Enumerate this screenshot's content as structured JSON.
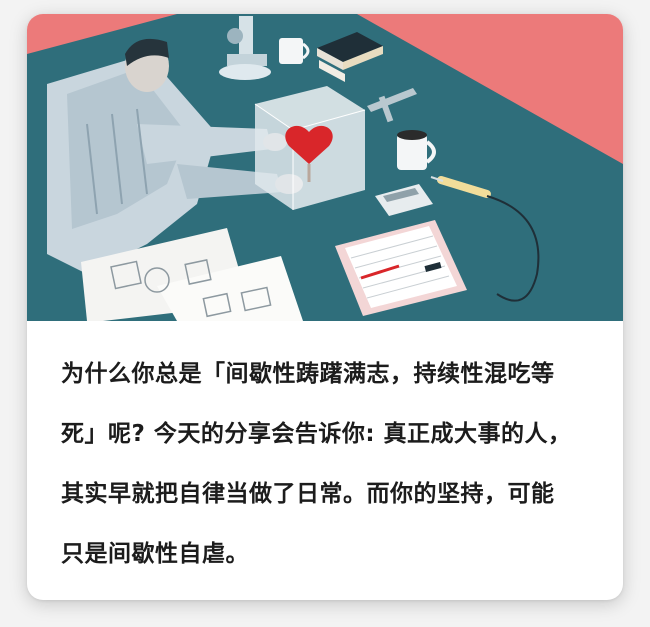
{
  "caption": {
    "lines": [
      "为什么你总是「间歇性踌躇满志，持续性混吃等",
      "死」呢? 今天的分享会告诉你: 真正成大事的人，",
      "其实早就把自律当做了日常。而你的坚持，可能",
      "只是间歇性自虐。"
    ]
  },
  "colors": {
    "background_coral": "#ec7a7a",
    "desk_teal": "#2f6e7b",
    "caption_text": "#1c1c1c"
  }
}
